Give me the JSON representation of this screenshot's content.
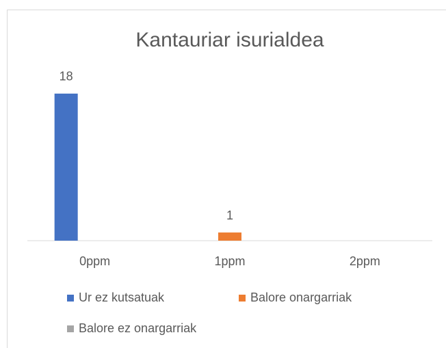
{
  "chart_data": {
    "type": "bar",
    "title": "Kantauriar isurialdea",
    "categories": [
      "0ppm",
      "1ppm",
      "2ppm"
    ],
    "series": [
      {
        "name": "Ur ez kutsatuak",
        "color": "#4472c4",
        "values": [
          18,
          null,
          null
        ]
      },
      {
        "name": "Balore onargarriak",
        "color": "#ed7d31",
        "values": [
          null,
          1,
          null
        ]
      },
      {
        "name": "Balore ez onargarriak",
        "color": "#a5a5a5",
        "values": [
          null,
          null,
          null
        ]
      }
    ],
    "ylim": [
      0,
      20
    ],
    "legend": "bottom"
  }
}
